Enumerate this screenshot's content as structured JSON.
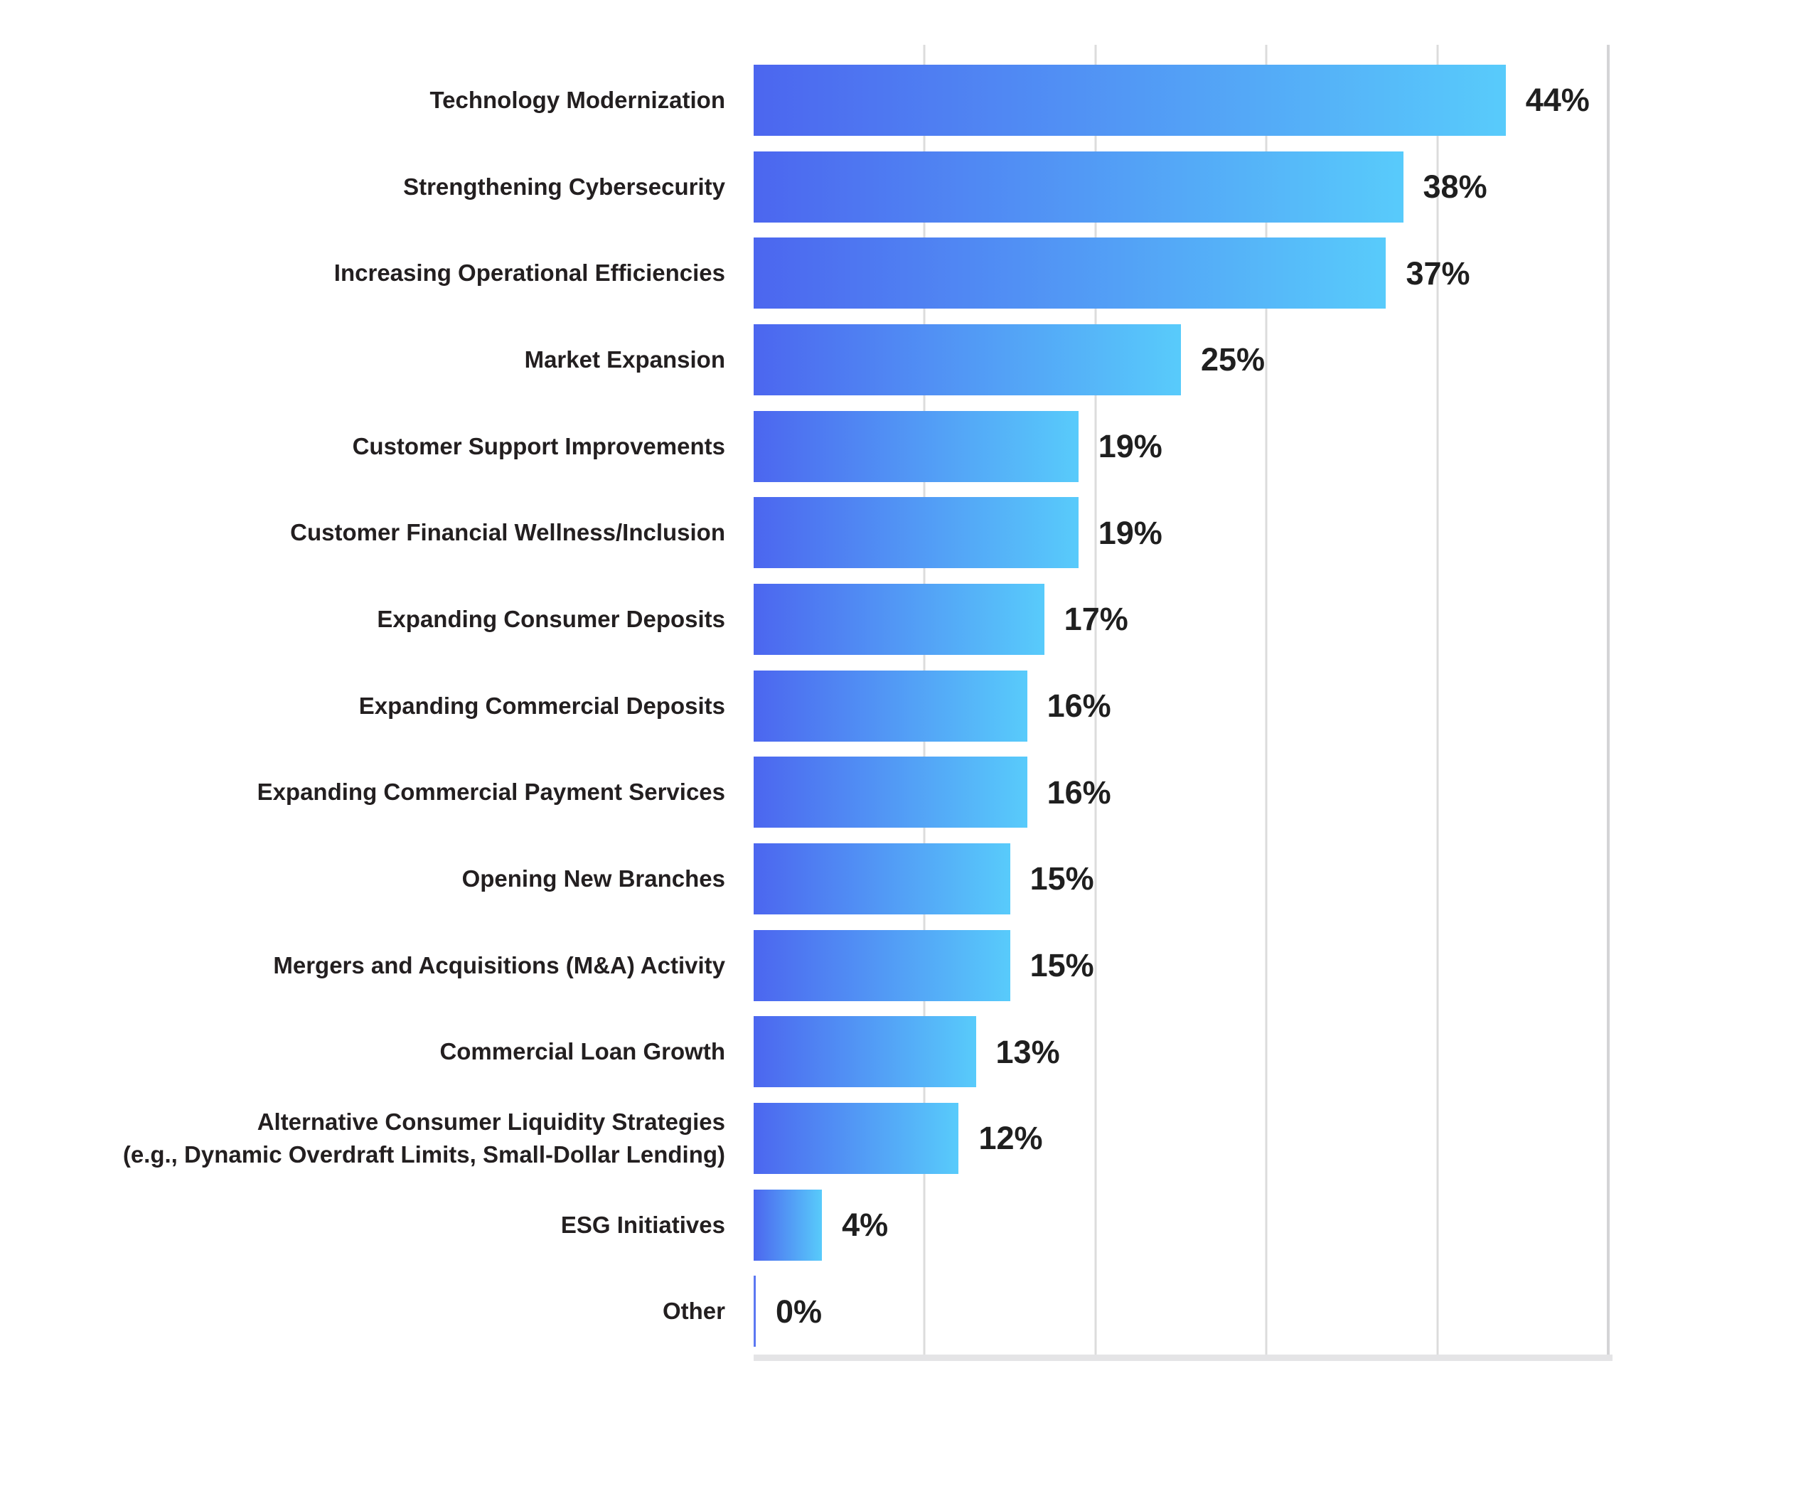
{
  "chart_data": {
    "type": "bar",
    "orientation": "horizontal",
    "title": "",
    "xlabel": "",
    "ylabel": "",
    "xlim": [
      0,
      50
    ],
    "grid": true,
    "gridlines_percent": [
      10,
      20,
      30,
      40,
      50
    ],
    "categories": [
      "Technology Modernization",
      "Strengthening Cybersecurity",
      "Increasing Operational Efficiencies",
      "Market Expansion",
      "Customer Support Improvements",
      "Customer Financial Wellness/Inclusion",
      "Expanding Consumer Deposits",
      "Expanding Commercial Deposits",
      "Expanding Commercial Payment Services",
      "Opening New Branches",
      "Mergers and Acquisitions (M&A) Activity",
      "Commercial Loan Growth",
      "Alternative Consumer Liquidity Strategies\n(e.g., Dynamic Overdraft Limits, Small-Dollar Lending)",
      "ESG Initiatives",
      "Other"
    ],
    "values": [
      44,
      38,
      37,
      25,
      19,
      19,
      17,
      16,
      16,
      15,
      15,
      13,
      12,
      4,
      0
    ],
    "value_labels": [
      "44%",
      "38%",
      "37%",
      "25%",
      "19%",
      "19%",
      "17%",
      "16%",
      "16%",
      "15%",
      "15%",
      "13%",
      "12%",
      "4%",
      "0%"
    ],
    "colors": {
      "bar_gradient_start": "#4C66EF",
      "bar_gradient_end": "#58CBFB",
      "zero_bar": "#5C78F2",
      "category_text": "#231F20",
      "value_text": "#1F1F1F",
      "gridline": "#DCDCDC",
      "plot_right_edge": "#D4D4D6",
      "bottom_shadow": "#E4E4E6",
      "background": "#FFFFFF"
    }
  }
}
